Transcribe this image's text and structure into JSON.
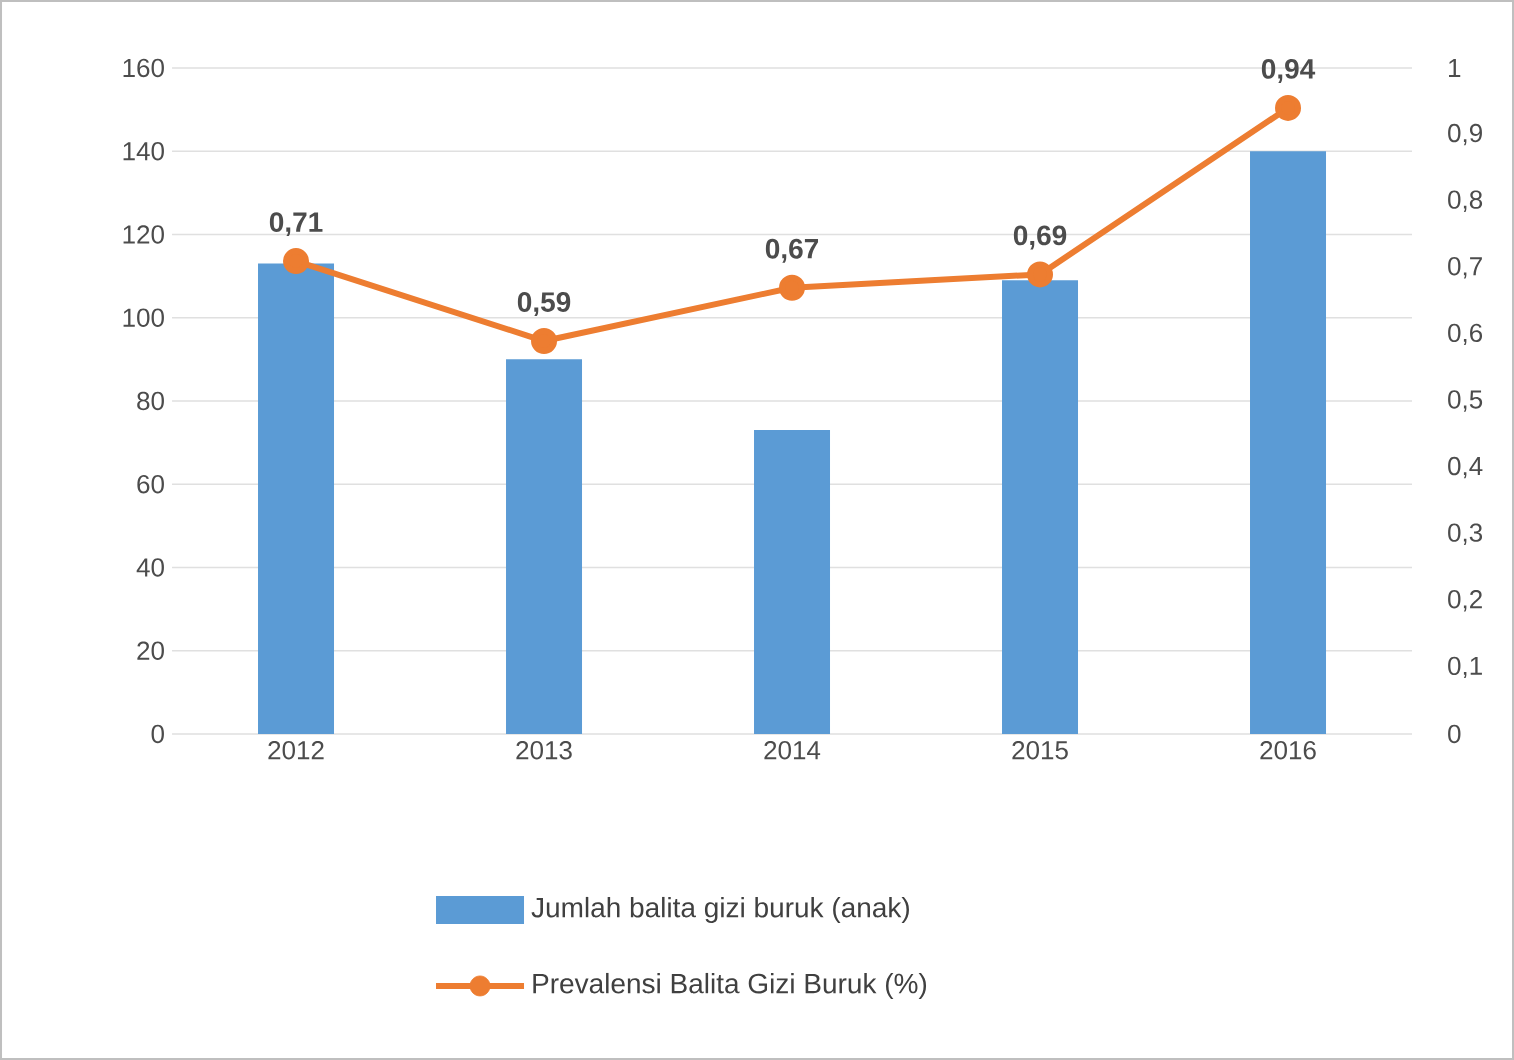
{
  "chart_data": {
    "type": "bar",
    "categories": [
      "2012",
      "2013",
      "2014",
      "2015",
      "2016"
    ],
    "series": [
      {
        "name": "Jumlah balita gizi buruk  (anak)",
        "color": "#5b9bd5",
        "values": [
          113,
          90,
          73,
          109,
          140
        ]
      },
      {
        "name": "Prevalensi Balita Gizi Buruk (%)",
        "type": "line",
        "axis": "y2",
        "color": "#ed7d31",
        "values": [
          0.71,
          0.59,
          0.67,
          0.69,
          0.94
        ],
        "value_labels": [
          "0,71",
          "0,59",
          "0,67",
          "0,69",
          "0,94"
        ]
      }
    ],
    "ylim": [
      0,
      160
    ],
    "yticks": [
      0,
      20,
      40,
      60,
      80,
      100,
      120,
      140,
      160
    ],
    "y2lim": [
      0,
      1
    ],
    "y2ticks": [
      {
        "value": 0,
        "label": "0"
      },
      {
        "value": 0.1,
        "label": "0,1"
      },
      {
        "value": 0.2,
        "label": "0,2"
      },
      {
        "value": 0.3,
        "label": "0,3"
      },
      {
        "value": 0.4,
        "label": "0,4"
      },
      {
        "value": 0.5,
        "label": "0,5"
      },
      {
        "value": 0.6,
        "label": "0,6"
      },
      {
        "value": 0.7,
        "label": "0,7"
      },
      {
        "value": 0.8,
        "label": "0,8"
      },
      {
        "value": 0.9,
        "label": "0,9"
      },
      {
        "value": 1,
        "label": "1"
      }
    ],
    "grid": "y",
    "legend": "bottom",
    "marker": "circle",
    "line_style": "solid"
  }
}
